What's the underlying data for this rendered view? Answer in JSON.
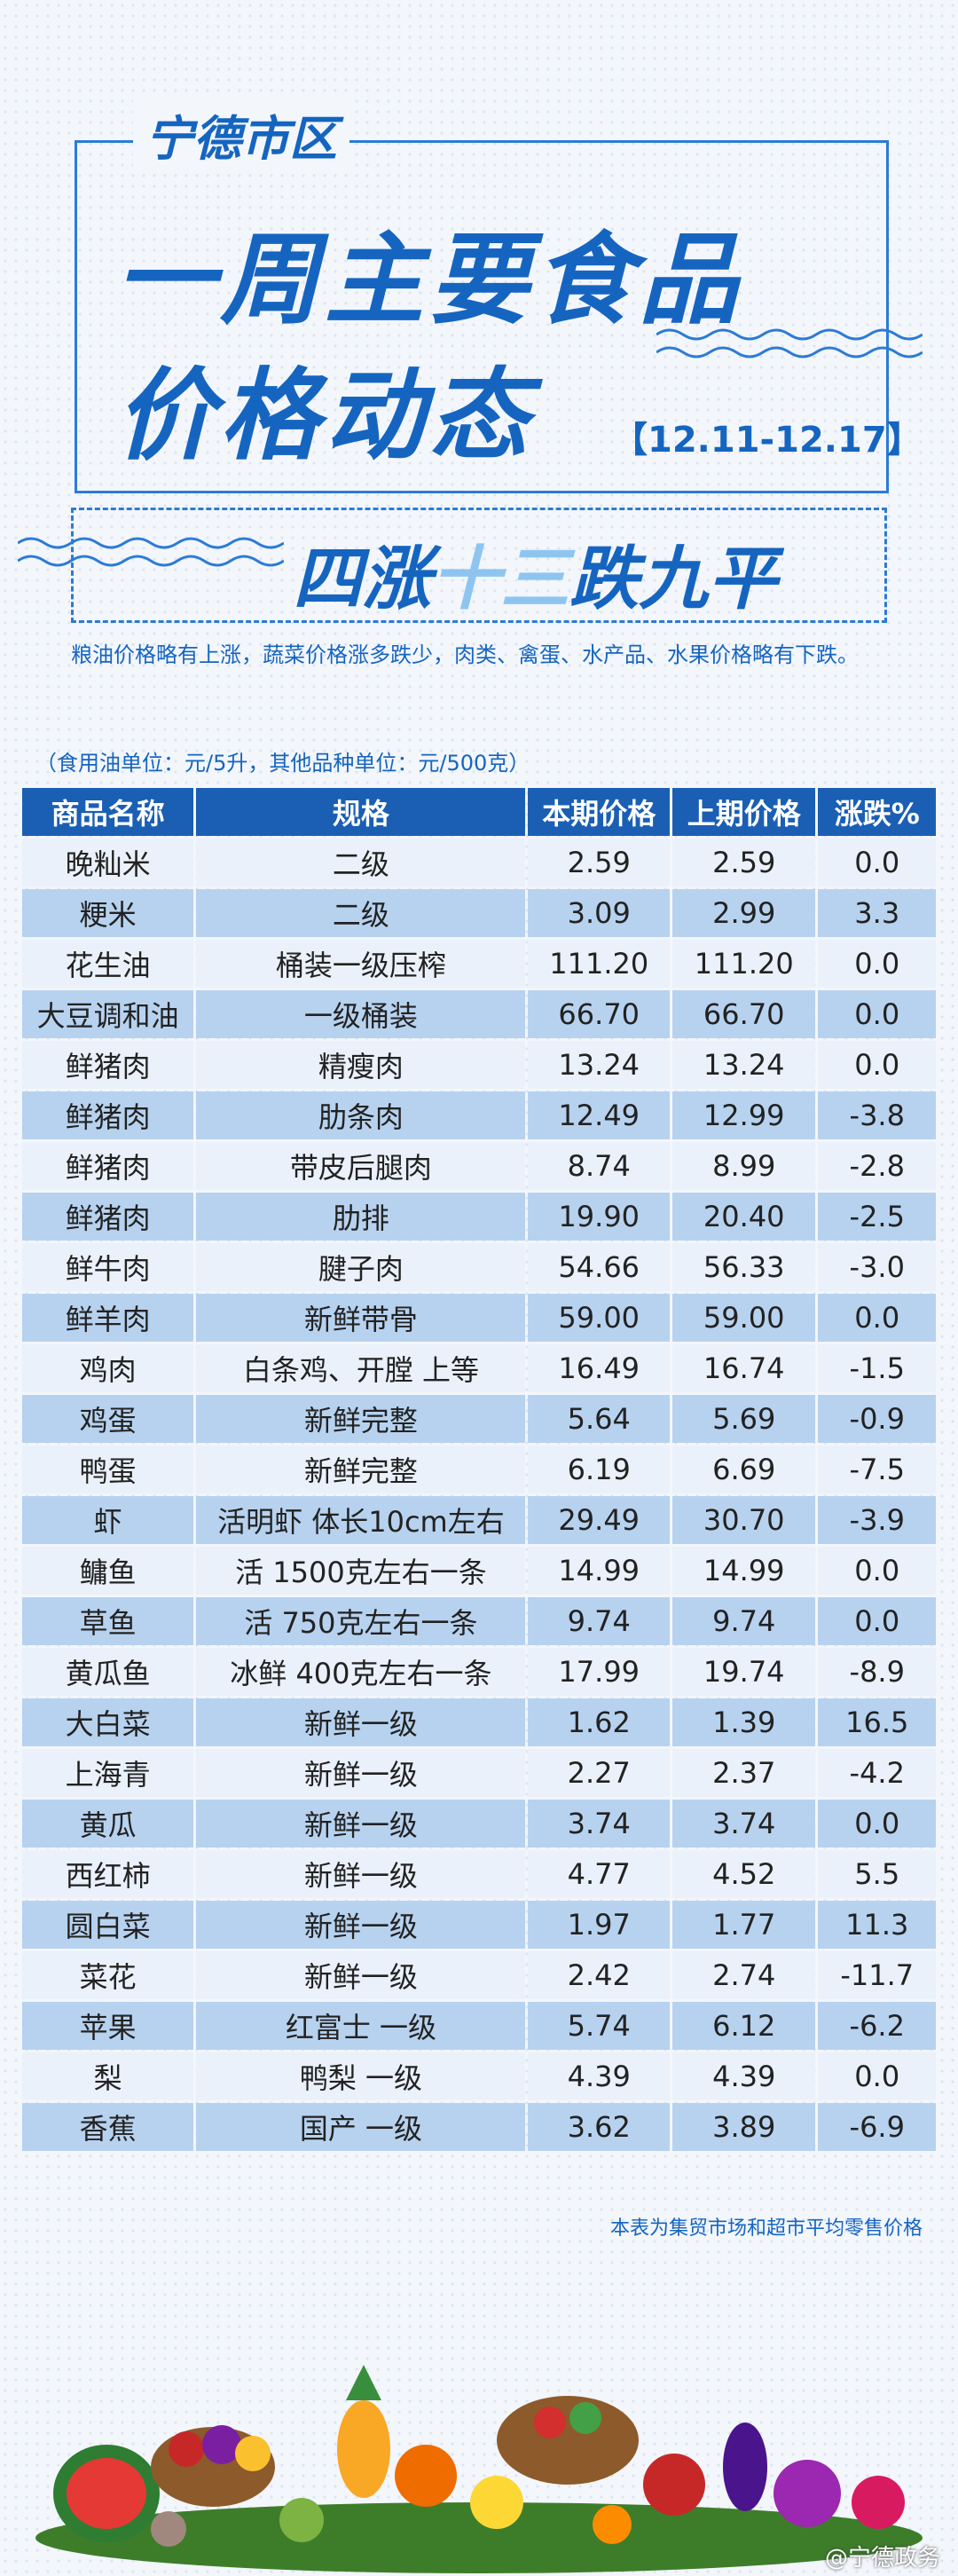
{
  "header": {
    "city": "宁德市区",
    "title_line1": "一周主要食品",
    "title_line2": "价格动态",
    "date_range": "【12.11-12.17】",
    "headline": [
      "四涨",
      "十三",
      "跌九平"
    ],
    "summary": "粮油价格略有上涨，蔬菜价格涨多跌少，肉类、禽蛋、水产品、水果价格略有下跌。"
  },
  "table": {
    "unit_note": "（食用油单位：元/5升，其他品种单位：元/500克）",
    "columns": [
      "商品名称",
      "规格",
      "本期价格",
      "上期价格",
      "涨跌%"
    ],
    "rows": [
      [
        "晚籼米",
        "二级",
        "2.59",
        "2.59",
        "0.0"
      ],
      [
        "粳米",
        "二级",
        "3.09",
        "2.99",
        "3.3"
      ],
      [
        "花生油",
        "桶装一级压榨",
        "111.20",
        "111.20",
        "0.0"
      ],
      [
        "大豆调和油",
        "一级桶装",
        "66.70",
        "66.70",
        "0.0"
      ],
      [
        "鲜猪肉",
        "精瘦肉",
        "13.24",
        "13.24",
        "0.0"
      ],
      [
        "鲜猪肉",
        "肋条肉",
        "12.49",
        "12.99",
        "-3.8"
      ],
      [
        "鲜猪肉",
        "带皮后腿肉",
        "8.74",
        "8.99",
        "-2.8"
      ],
      [
        "鲜猪肉",
        "肋排",
        "19.90",
        "20.40",
        "-2.5"
      ],
      [
        "鲜牛肉",
        "腱子肉",
        "54.66",
        "56.33",
        "-3.0"
      ],
      [
        "鲜羊肉",
        "新鲜带骨",
        "59.00",
        "59.00",
        "0.0"
      ],
      [
        "鸡肉",
        "白条鸡、开膛 上等",
        "16.49",
        "16.74",
        "-1.5"
      ],
      [
        "鸡蛋",
        "新鲜完整",
        "5.64",
        "5.69",
        "-0.9"
      ],
      [
        "鸭蛋",
        "新鲜完整",
        "6.19",
        "6.69",
        "-7.5"
      ],
      [
        "虾",
        "活明虾 体长10cm左右",
        "29.49",
        "30.70",
        "-3.9"
      ],
      [
        "鳙鱼",
        "活 1500克左右一条",
        "14.99",
        "14.99",
        "0.0"
      ],
      [
        "草鱼",
        "活 750克左右一条",
        "9.74",
        "9.74",
        "0.0"
      ],
      [
        "黄瓜鱼",
        "冰鲜 400克左右一条",
        "17.99",
        "19.74",
        "-8.9"
      ],
      [
        "大白菜",
        "新鲜一级",
        "1.62",
        "1.39",
        "16.5"
      ],
      [
        "上海青",
        "新鲜一级",
        "2.27",
        "2.37",
        "-4.2"
      ],
      [
        "黄瓜",
        "新鲜一级",
        "3.74",
        "3.74",
        "0.0"
      ],
      [
        "西红柿",
        "新鲜一级",
        "4.77",
        "4.52",
        "5.5"
      ],
      [
        "圆白菜",
        "新鲜一级",
        "1.97",
        "1.77",
        "11.3"
      ],
      [
        "菜花",
        "新鲜一级",
        "2.42",
        "2.74",
        "-11.7"
      ],
      [
        "苹果",
        "红富士 一级",
        "5.74",
        "6.12",
        "-6.2"
      ],
      [
        "梨",
        "鸭梨 一级",
        "4.39",
        "4.39",
        "0.0"
      ],
      [
        "香蕉",
        "国产 一级",
        "3.62",
        "3.89",
        "-6.9"
      ]
    ],
    "footnote": "本表为集贸市场和超市平均零售价格"
  },
  "watermark": "@宁德政务"
}
